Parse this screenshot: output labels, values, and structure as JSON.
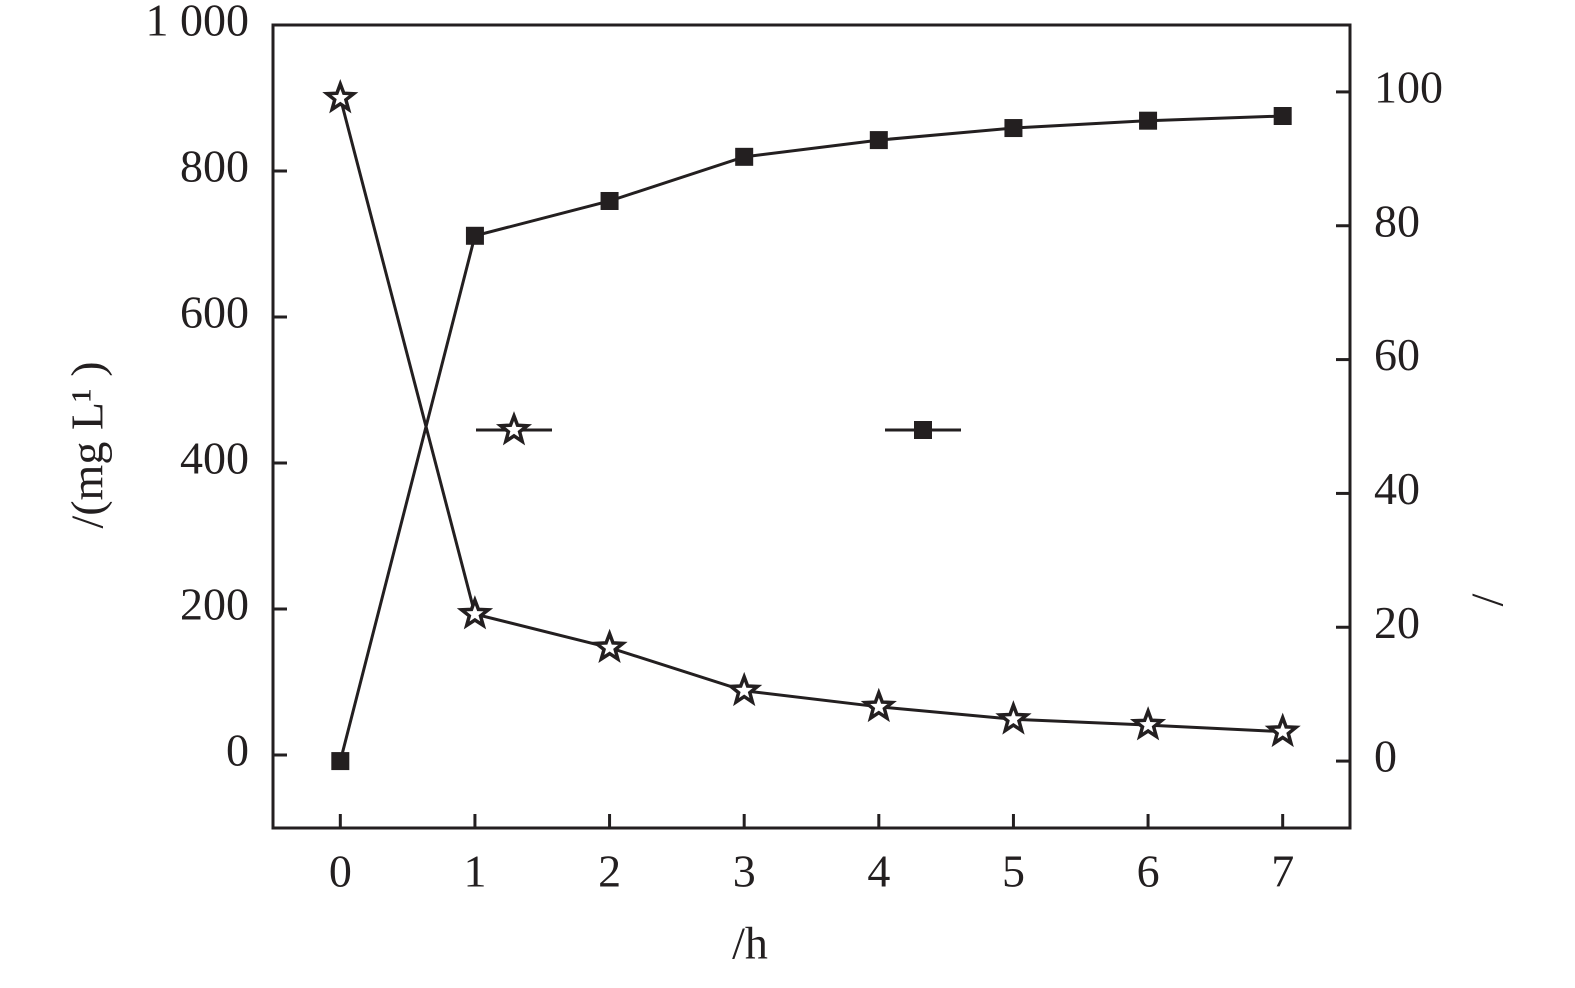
{
  "chart_data": {
    "type": "line",
    "x_label": "/h",
    "y_label": "/(mg L¹ )",
    "y2_label": "/",
    "x": [
      0,
      1,
      2,
      3,
      4,
      5,
      6,
      7
    ],
    "xlim": [
      -0.5,
      7.5
    ],
    "xticks": [
      0,
      1,
      2,
      3,
      4,
      5,
      6,
      7
    ],
    "ylim": [
      -100,
      1000
    ],
    "yticks": [
      0,
      200,
      400,
      600,
      800,
      {
        "value": 1000,
        "label": "1 000"
      }
    ],
    "y2lim": [
      -10,
      110
    ],
    "y2ticks": [
      0,
      20,
      40,
      60,
      80,
      100
    ],
    "series": [
      {
        "color": "#231f20",
        "marker": "star",
        "values": [
          900,
          193,
          147,
          88,
          66,
          49,
          41,
          32
        ]
      },
      {
        "color": "#231f20",
        "marker": "square",
        "axis": "y2",
        "values": [
          0,
          78.5,
          83.7,
          90.3,
          92.8,
          94.6,
          95.7,
          96.4
        ]
      }
    ]
  }
}
